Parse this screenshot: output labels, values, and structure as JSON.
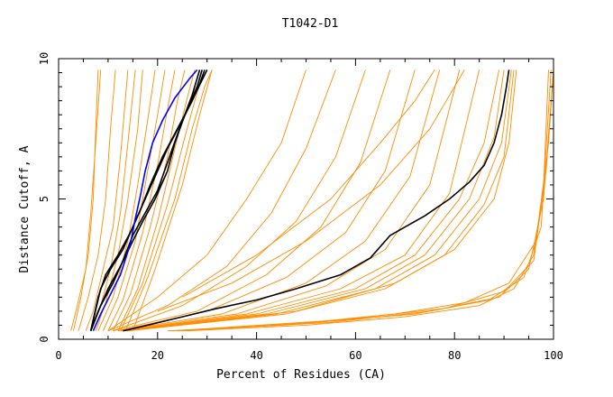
{
  "chart_data": {
    "type": "line",
    "title": "T1042-D1",
    "xlabel": "Percent of Residues (CA)",
    "ylabel": "Distance Cutoff, A",
    "xlim": [
      0,
      100
    ],
    "ylim": [
      0,
      10
    ],
    "x_ticks": [
      "0",
      "20",
      "40",
      "60",
      "80",
      "100"
    ],
    "y_ticks": [
      "0",
      "5",
      "10"
    ],
    "grid": false,
    "legend": "none",
    "colors": {
      "background_models": "#ff8c00",
      "highlight_black": "#000000",
      "highlight_blue": "#0000ff",
      "axes": "#000000"
    },
    "note_background": "Many orange curves (one per model); representative samples listed.",
    "background_series": [
      {
        "points": [
          [
            2.5,
            0.3
          ],
          [
            3.5,
            1.0
          ],
          [
            5.5,
            2.5
          ],
          [
            6.5,
            4.5
          ],
          [
            7.5,
            7.0
          ],
          [
            8.5,
            9.6
          ]
        ]
      },
      {
        "points": [
          [
            3.0,
            0.3
          ],
          [
            4.5,
            1.5
          ],
          [
            6.0,
            3.0
          ],
          [
            7.0,
            5.0
          ],
          [
            7.5,
            7.5
          ],
          [
            8.0,
            9.6
          ]
        ]
      },
      {
        "points": [
          [
            4.0,
            0.3
          ],
          [
            6.0,
            1.5
          ],
          [
            8.0,
            3.0
          ],
          [
            9.5,
            5.0
          ],
          [
            10.5,
            7.5
          ],
          [
            11.5,
            9.6
          ]
        ]
      },
      {
        "points": [
          [
            5.5,
            0.3
          ],
          [
            7.0,
            1.0
          ],
          [
            9.0,
            2.5
          ],
          [
            11.0,
            4.0
          ],
          [
            12.5,
            6.5
          ],
          [
            14.0,
            9.6
          ]
        ]
      },
      {
        "points": [
          [
            6.5,
            0.3
          ],
          [
            8.5,
            1.2
          ],
          [
            10.5,
            2.5
          ],
          [
            12.5,
            4.5
          ],
          [
            14.0,
            7.0
          ],
          [
            15.5,
            9.6
          ]
        ]
      },
      {
        "points": [
          [
            7.5,
            0.3
          ],
          [
            9.5,
            1.3
          ],
          [
            12.0,
            3.0
          ],
          [
            14.0,
            5.0
          ],
          [
            16.0,
            7.5
          ],
          [
            17.0,
            9.6
          ]
        ]
      },
      {
        "points": [
          [
            8.0,
            0.3
          ],
          [
            11.0,
            1.5
          ],
          [
            14.0,
            3.5
          ],
          [
            16.0,
            5.5
          ],
          [
            18.0,
            7.8
          ],
          [
            19.5,
            9.6
          ]
        ]
      },
      {
        "points": [
          [
            9.0,
            0.3
          ],
          [
            12.0,
            1.5
          ],
          [
            15.5,
            3.5
          ],
          [
            18.0,
            6.0
          ],
          [
            20.0,
            8.0
          ],
          [
            21.5,
            9.6
          ]
        ]
      },
      {
        "points": [
          [
            10.0,
            0.3
          ],
          [
            13.0,
            1.4
          ],
          [
            17.0,
            3.8
          ],
          [
            20.0,
            6.2
          ],
          [
            22.0,
            8.2
          ],
          [
            23.5,
            9.6
          ]
        ]
      },
      {
        "points": [
          [
            11.0,
            0.3
          ],
          [
            14.5,
            1.6
          ],
          [
            18.5,
            4.0
          ],
          [
            22.0,
            6.5
          ],
          [
            24.0,
            8.5
          ],
          [
            25.5,
            9.6
          ]
        ]
      },
      {
        "points": [
          [
            12.0,
            0.3
          ],
          [
            16.0,
            1.8
          ],
          [
            20.0,
            4.2
          ],
          [
            23.5,
            6.8
          ],
          [
            26.0,
            8.6
          ],
          [
            27.5,
            9.6
          ]
        ]
      },
      {
        "points": [
          [
            12.5,
            0.3
          ],
          [
            17.0,
            2.0
          ],
          [
            22.0,
            4.8
          ],
          [
            25.5,
            7.2
          ],
          [
            28.0,
            8.8
          ],
          [
            29.5,
            9.6
          ]
        ]
      },
      {
        "points": [
          [
            13.5,
            0.3
          ],
          [
            18.0,
            2.2
          ],
          [
            23.5,
            5.0
          ],
          [
            27.0,
            7.5
          ],
          [
            29.5,
            9.0
          ],
          [
            31.0,
            9.6
          ]
        ]
      },
      {
        "points": [
          [
            15.0,
            0.3
          ],
          [
            19.5,
            2.5
          ],
          [
            25.0,
            5.5
          ],
          [
            28.5,
            8.0
          ],
          [
            31.0,
            9.6
          ]
        ]
      },
      {
        "points": [
          [
            10.0,
            0.3
          ],
          [
            20.0,
            1.5
          ],
          [
            30.0,
            3.0
          ],
          [
            38.0,
            5.0
          ],
          [
            45.0,
            7.0
          ],
          [
            50.0,
            9.6
          ]
        ]
      },
      {
        "points": [
          [
            10.0,
            0.3
          ],
          [
            22.0,
            1.2
          ],
          [
            34.0,
            2.6
          ],
          [
            43.0,
            4.5
          ],
          [
            50.0,
            6.8
          ],
          [
            56.0,
            9.6
          ]
        ]
      },
      {
        "points": [
          [
            11.0,
            0.3
          ],
          [
            25.0,
            1.2
          ],
          [
            38.0,
            2.6
          ],
          [
            48.0,
            4.2
          ],
          [
            56.0,
            6.5
          ],
          [
            62.0,
            9.6
          ]
        ]
      },
      {
        "points": [
          [
            11.0,
            0.3
          ],
          [
            28.0,
            1.0
          ],
          [
            42.0,
            2.3
          ],
          [
            53.0,
            4.0
          ],
          [
            61.0,
            6.3
          ],
          [
            67.0,
            9.6
          ]
        ]
      },
      {
        "points": [
          [
            12.0,
            0.3
          ],
          [
            30.0,
            1.0
          ],
          [
            46.0,
            2.2
          ],
          [
            58.0,
            3.8
          ],
          [
            66.0,
            6.0
          ],
          [
            72.0,
            9.6
          ]
        ]
      },
      {
        "points": [
          [
            12.0,
            0.3
          ],
          [
            33.0,
            0.9
          ],
          [
            50.0,
            2.0
          ],
          [
            62.0,
            3.5
          ],
          [
            71.0,
            5.8
          ],
          [
            77.0,
            9.6
          ]
        ]
      },
      {
        "points": [
          [
            12.5,
            0.3
          ],
          [
            36.0,
            0.9
          ],
          [
            54.0,
            1.9
          ],
          [
            66.0,
            3.2
          ],
          [
            75.0,
            5.5
          ],
          [
            81.0,
            9.6
          ]
        ]
      },
      {
        "points": [
          [
            13.0,
            0.3
          ],
          [
            38.0,
            0.9
          ],
          [
            57.0,
            1.8
          ],
          [
            70.0,
            3.0
          ],
          [
            79.0,
            5.2
          ],
          [
            85.0,
            9.6
          ]
        ]
      },
      {
        "points": [
          [
            13.0,
            0.3
          ],
          [
            40.0,
            0.9
          ],
          [
            60.0,
            1.8
          ],
          [
            72.0,
            3.0
          ],
          [
            81.0,
            5.0
          ],
          [
            86.0,
            7.0
          ],
          [
            89.0,
            9.6
          ]
        ]
      },
      {
        "points": [
          [
            13.5,
            0.3
          ],
          [
            42.0,
            0.9
          ],
          [
            62.0,
            1.8
          ],
          [
            74.0,
            3.0
          ],
          [
            83.0,
            5.0
          ],
          [
            88.0,
            7.2
          ],
          [
            90.0,
            9.6
          ]
        ]
      },
      {
        "points": [
          [
            13.5,
            0.3
          ],
          [
            44.0,
            0.9
          ],
          [
            64.0,
            1.8
          ],
          [
            76.0,
            3.0
          ],
          [
            85.0,
            5.0
          ],
          [
            89.5,
            7.0
          ],
          [
            91.5,
            9.6
          ]
        ]
      },
      {
        "points": [
          [
            14.0,
            0.3
          ],
          [
            46.0,
            0.9
          ],
          [
            66.0,
            1.8
          ],
          [
            78.0,
            3.0
          ],
          [
            86.0,
            4.8
          ],
          [
            90.0,
            6.5
          ],
          [
            92.0,
            9.6
          ]
        ]
      },
      {
        "points": [
          [
            14.0,
            0.3
          ],
          [
            48.0,
            1.0
          ],
          [
            68.0,
            2.0
          ],
          [
            80.0,
            3.2
          ],
          [
            88.0,
            5.0
          ],
          [
            91.0,
            7.0
          ],
          [
            92.5,
            9.6
          ]
        ]
      },
      {
        "points": [
          [
            20.0,
            1.0
          ],
          [
            35.0,
            2.0
          ],
          [
            50.0,
            3.5
          ],
          [
            65.0,
            5.5
          ],
          [
            75.0,
            7.5
          ],
          [
            82.0,
            9.6
          ]
        ]
      },
      {
        "points": [
          [
            25.0,
            1.5
          ],
          [
            40.0,
            3.0
          ],
          [
            55.0,
            5.0
          ],
          [
            65.0,
            7.0
          ],
          [
            72.0,
            8.5
          ],
          [
            76.0,
            9.6
          ]
        ]
      },
      {
        "points": [
          [
            26.0,
            0.3
          ],
          [
            50.0,
            0.5
          ],
          [
            70.0,
            0.8
          ],
          [
            85.0,
            1.2
          ],
          [
            92.0,
            1.8
          ],
          [
            96.0,
            3.0
          ],
          [
            98.0,
            5.5
          ],
          [
            99.0,
            9.6
          ]
        ]
      },
      {
        "points": [
          [
            25.0,
            0.3
          ],
          [
            52.0,
            0.6
          ],
          [
            72.0,
            0.9
          ],
          [
            87.0,
            1.4
          ],
          [
            94.0,
            2.2
          ],
          [
            97.5,
            4.0
          ],
          [
            99.5,
            9.6
          ]
        ]
      },
      {
        "points": [
          [
            24.0,
            0.3
          ],
          [
            55.0,
            0.6
          ],
          [
            75.0,
            1.0
          ],
          [
            89.0,
            1.5
          ],
          [
            95.0,
            2.5
          ],
          [
            98.0,
            5.0
          ],
          [
            100.0,
            9.6
          ]
        ]
      },
      {
        "points": [
          [
            23.0,
            0.3
          ],
          [
            58.0,
            0.7
          ],
          [
            78.0,
            1.1
          ],
          [
            90.0,
            1.7
          ],
          [
            96.0,
            2.8
          ],
          [
            98.5,
            6.0
          ],
          [
            100.0,
            9.6
          ]
        ]
      },
      {
        "points": [
          [
            22.0,
            0.3
          ],
          [
            45.0,
            0.5
          ],
          [
            68.0,
            0.9
          ],
          [
            82.0,
            1.3
          ],
          [
            91.0,
            2.0
          ],
          [
            96.5,
            3.5
          ],
          [
            99.0,
            7.0
          ],
          [
            100.0,
            9.6
          ]
        ]
      }
    ],
    "highlight_series": [
      {
        "color": "#000000",
        "points": [
          [
            6.5,
            0.3
          ],
          [
            8.0,
            1.0
          ],
          [
            10.0,
            1.8
          ],
          [
            12.5,
            2.6
          ],
          [
            15.0,
            3.5
          ],
          [
            17.0,
            4.2
          ],
          [
            19.5,
            5.0
          ],
          [
            22.0,
            6.0
          ],
          [
            23.5,
            7.0
          ],
          [
            25.5,
            8.0
          ],
          [
            27.0,
            8.7
          ],
          [
            28.5,
            9.6
          ]
        ]
      },
      {
        "color": "#000000",
        "points": [
          [
            6.5,
            0.3
          ],
          [
            8.5,
            1.2
          ],
          [
            11.0,
            2.0
          ],
          [
            13.0,
            2.8
          ],
          [
            15.0,
            3.7
          ],
          [
            17.5,
            4.5
          ],
          [
            20.0,
            5.3
          ],
          [
            22.0,
            6.3
          ],
          [
            24.0,
            7.3
          ],
          [
            26.0,
            8.2
          ],
          [
            28.0,
            9.0
          ],
          [
            29.0,
            9.6
          ]
        ]
      },
      {
        "color": "#000000",
        "points": [
          [
            6.5,
            0.3
          ],
          [
            8.0,
            1.5
          ],
          [
            9.5,
            2.3
          ],
          [
            12.0,
            3.0
          ],
          [
            14.5,
            3.8
          ],
          [
            16.5,
            4.6
          ],
          [
            18.5,
            5.5
          ],
          [
            21.0,
            6.5
          ],
          [
            24.0,
            7.5
          ],
          [
            27.0,
            8.5
          ],
          [
            28.5,
            9.1
          ],
          [
            29.5,
            9.6
          ]
        ]
      },
      {
        "color": "#000000",
        "points": [
          [
            6.5,
            0.3
          ],
          [
            8.5,
            1.8
          ],
          [
            10.5,
            2.5
          ],
          [
            13.0,
            3.2
          ],
          [
            15.0,
            4.0
          ],
          [
            17.0,
            4.8
          ],
          [
            19.5,
            5.8
          ],
          [
            22.0,
            6.8
          ],
          [
            25.0,
            7.8
          ],
          [
            27.5,
            8.7
          ],
          [
            30.0,
            9.6
          ]
        ]
      },
      {
        "color": "#0000ff",
        "points": [
          [
            7.0,
            0.3
          ],
          [
            8.5,
            0.9
          ],
          [
            10.5,
            1.6
          ],
          [
            12.5,
            2.3
          ],
          [
            14.5,
            3.4
          ],
          [
            15.5,
            4.3
          ],
          [
            16.5,
            5.1
          ],
          [
            17.5,
            6.0
          ],
          [
            19.0,
            7.0
          ],
          [
            21.0,
            7.8
          ],
          [
            23.5,
            8.6
          ],
          [
            26.5,
            9.3
          ],
          [
            28.0,
            9.6
          ]
        ]
      },
      {
        "color": "#000000",
        "points": [
          [
            13.0,
            0.3
          ],
          [
            18.0,
            0.5
          ],
          [
            25.0,
            0.8
          ],
          [
            32.0,
            1.1
          ],
          [
            40.0,
            1.4
          ],
          [
            48.0,
            1.8
          ],
          [
            57.0,
            2.3
          ],
          [
            63.0,
            2.9
          ],
          [
            67.0,
            3.7
          ],
          [
            70.0,
            4.0
          ],
          [
            74.0,
            4.4
          ],
          [
            79.0,
            5.0
          ],
          [
            83.0,
            5.6
          ],
          [
            86.0,
            6.2
          ],
          [
            88.0,
            7.0
          ],
          [
            89.5,
            8.0
          ],
          [
            90.5,
            9.0
          ],
          [
            91.0,
            9.6
          ]
        ]
      }
    ]
  }
}
